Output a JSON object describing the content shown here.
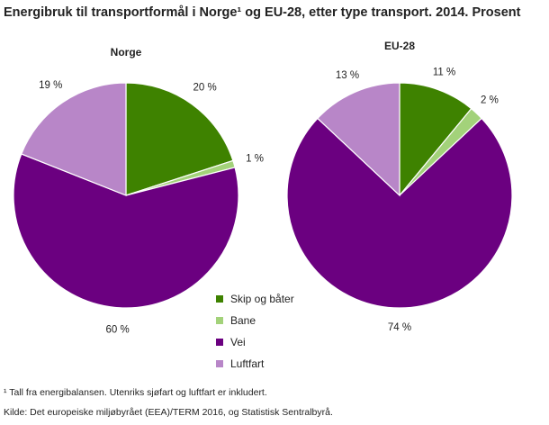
{
  "title": "Energibruk til transportformål i Norge¹ og EU-28, etter type transport. 2014. Prosent",
  "footnote": "¹ Tall fra energibalansen. Utenriks sjøfart og luftfart er inkludert.",
  "source": "Kilde: Det europeiske miljøbyrået (EEA)/TERM 2016, og Statistisk Sentralbyrå.",
  "chart_data": [
    {
      "type": "pie",
      "title": "Norge",
      "categories": [
        "Skip og båter",
        "Bane",
        "Vei",
        "Luftfart"
      ],
      "values": [
        20,
        1,
        60,
        19
      ],
      "labels": [
        "20 %",
        "1 %",
        "60 %",
        "19 %"
      ],
      "colors": [
        "#3e8200",
        "#a3d27a",
        "#6b0080",
        "#b886c8"
      ],
      "start_angle": "12 o'clock",
      "direction": "clockwise"
    },
    {
      "type": "pie",
      "title": "EU-28",
      "categories": [
        "Skip og båter",
        "Bane",
        "Vei",
        "Luftfart"
      ],
      "values": [
        11,
        2,
        74,
        13
      ],
      "labels": [
        "11 %",
        "2 %",
        "74 %",
        "13 %"
      ],
      "colors": [
        "#3e8200",
        "#a3d27a",
        "#6b0080",
        "#b886c8"
      ],
      "start_angle": "12 o'clock",
      "direction": "clockwise"
    }
  ],
  "legend": {
    "placement": "center-bottom",
    "items": [
      {
        "label": "Skip og båter",
        "color": "#3e8200"
      },
      {
        "label": "Bane",
        "color": "#a3d27a"
      },
      {
        "label": "Vei",
        "color": "#6b0080"
      },
      {
        "label": "Luftfart",
        "color": "#b886c8"
      }
    ]
  }
}
